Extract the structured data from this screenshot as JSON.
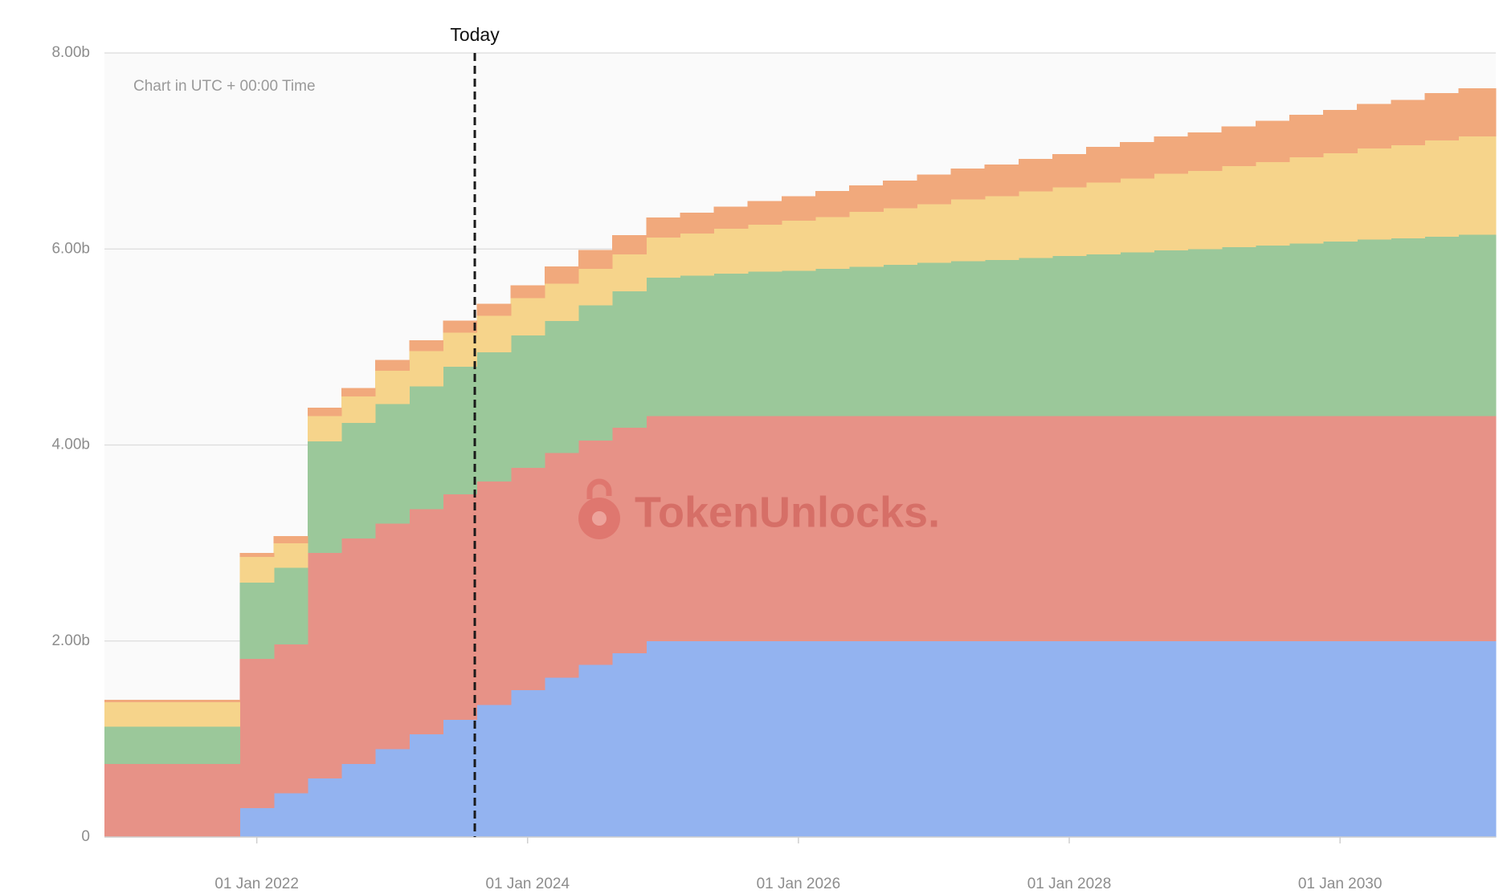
{
  "chart_data": {
    "type": "stacked-step-area",
    "annotations": {
      "timezone": "Chart in UTC + 00:00 Time",
      "today_label": "Today",
      "today_x": 2023.61,
      "watermark": "TokenUnlocks."
    },
    "x": [
      2020.875,
      2021.875,
      2022.125,
      2022.375,
      2022.625,
      2022.875,
      2023.125,
      2023.375,
      2023.625,
      2023.875,
      2024.125,
      2024.375,
      2024.625,
      2024.875,
      2025.125,
      2025.375,
      2025.625,
      2025.875,
      2026.125,
      2026.375,
      2026.625,
      2026.875,
      2027.125,
      2027.375,
      2027.625,
      2027.875,
      2028.125,
      2028.375,
      2028.625,
      2028.875,
      2029.125,
      2029.375,
      2029.625,
      2029.875,
      2030.125,
      2030.375,
      2030.625,
      2030.875
    ],
    "series": [
      {
        "color": "#93b3f0",
        "values": [
          0,
          0.3,
          0.45,
          0.6,
          0.75,
          0.9,
          1.05,
          1.2,
          1.35,
          1.5,
          1.63,
          1.76,
          1.88,
          2.0,
          2.0,
          2.0,
          2.0,
          2.0,
          2.0,
          2.0,
          2.0,
          2.0,
          2.0,
          2.0,
          2.0,
          2.0,
          2.0,
          2.0,
          2.0,
          2.0,
          2.0,
          2.0,
          2.0,
          2.0,
          2.0,
          2.0,
          2.0,
          2.0
        ]
      },
      {
        "color": "#e79287",
        "values": [
          0.75,
          1.52,
          1.52,
          2.3,
          2.3,
          2.3,
          2.3,
          2.3,
          2.28,
          2.27,
          2.29,
          2.29,
          2.3,
          2.3,
          2.3,
          2.3,
          2.3,
          2.3,
          2.3,
          2.3,
          2.3,
          2.3,
          2.3,
          2.3,
          2.3,
          2.3,
          2.3,
          2.3,
          2.3,
          2.3,
          2.3,
          2.3,
          2.3,
          2.3,
          2.3,
          2.3,
          2.3,
          2.3
        ]
      },
      {
        "color": "#9bc89a",
        "values": [
          0.38,
          0.78,
          0.78,
          1.14,
          1.18,
          1.22,
          1.25,
          1.3,
          1.32,
          1.35,
          1.35,
          1.38,
          1.39,
          1.41,
          1.43,
          1.45,
          1.47,
          1.48,
          1.5,
          1.52,
          1.54,
          1.56,
          1.58,
          1.59,
          1.61,
          1.63,
          1.65,
          1.67,
          1.69,
          1.7,
          1.72,
          1.74,
          1.76,
          1.78,
          1.8,
          1.81,
          1.83,
          1.85
        ]
      },
      {
        "color": "#f6d48b",
        "values": [
          0.25,
          0.26,
          0.25,
          0.26,
          0.27,
          0.34,
          0.36,
          0.35,
          0.37,
          0.38,
          0.38,
          0.37,
          0.38,
          0.41,
          0.43,
          0.46,
          0.48,
          0.51,
          0.53,
          0.56,
          0.58,
          0.6,
          0.63,
          0.65,
          0.68,
          0.7,
          0.73,
          0.75,
          0.78,
          0.8,
          0.83,
          0.85,
          0.88,
          0.9,
          0.93,
          0.95,
          0.98,
          1.0
        ]
      },
      {
        "color": "#f1a97c",
        "values": [
          0.02,
          0.04,
          0.07,
          0.08,
          0.08,
          0.11,
          0.11,
          0.12,
          0.12,
          0.13,
          0.17,
          0.19,
          0.19,
          0.2,
          0.21,
          0.22,
          0.24,
          0.25,
          0.26,
          0.27,
          0.28,
          0.3,
          0.31,
          0.32,
          0.33,
          0.34,
          0.36,
          0.37,
          0.38,
          0.39,
          0.4,
          0.42,
          0.43,
          0.44,
          0.45,
          0.46,
          0.48,
          0.49
        ]
      }
    ],
    "xlim": [
      2020.875,
      2031.15
    ],
    "ylim": [
      0,
      8
    ],
    "xticks": [
      {
        "value": 2022,
        "label": "01 Jan 2022"
      },
      {
        "value": 2024,
        "label": "01 Jan 2024"
      },
      {
        "value": 2026,
        "label": "01 Jan 2026"
      },
      {
        "value": 2028,
        "label": "01 Jan 2028"
      },
      {
        "value": 2030,
        "label": "01 Jan 2030"
      }
    ],
    "yticks": [
      0,
      {
        "value": 2,
        "label": "2.00b"
      },
      {
        "value": 4,
        "label": "4.00b"
      },
      {
        "value": 6,
        "label": "6.00b"
      },
      {
        "value": 8,
        "label": "8.00b"
      }
    ],
    "grid": true
  }
}
